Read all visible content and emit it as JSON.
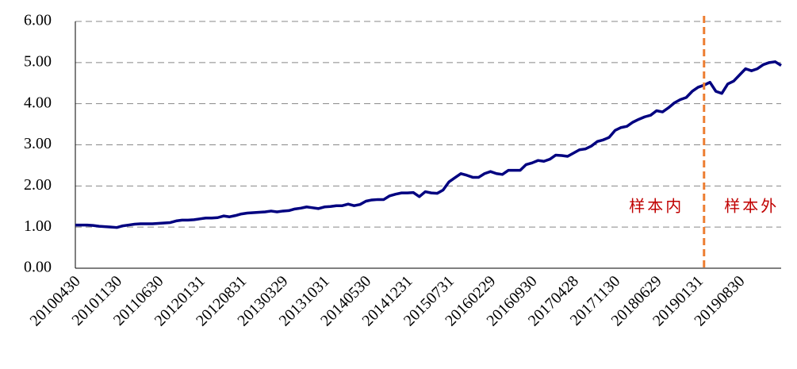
{
  "chart_data": {
    "type": "line",
    "categories": [
      "20100430",
      null,
      null,
      null,
      null,
      null,
      null,
      "20101130",
      null,
      null,
      null,
      null,
      null,
      null,
      "20110630",
      null,
      null,
      null,
      null,
      null,
      null,
      "20120131",
      null,
      null,
      null,
      null,
      null,
      null,
      "20120831",
      null,
      null,
      null,
      null,
      null,
      null,
      "20130329",
      null,
      null,
      null,
      null,
      null,
      null,
      "20131031",
      null,
      null,
      null,
      null,
      null,
      null,
      "20140530",
      null,
      null,
      null,
      null,
      null,
      null,
      "20141231",
      null,
      null,
      null,
      null,
      null,
      null,
      "20150731",
      null,
      null,
      null,
      null,
      null,
      null,
      "20160229",
      null,
      null,
      null,
      null,
      null,
      null,
      "20160930",
      null,
      null,
      null,
      null,
      null,
      null,
      "20170428",
      null,
      null,
      null,
      null,
      null,
      null,
      "20171130",
      null,
      null,
      null,
      null,
      null,
      null,
      "20180629",
      null,
      null,
      null,
      null,
      null,
      null,
      "20190131",
      null,
      null,
      null,
      null,
      null,
      null,
      "20190830",
      null,
      null,
      null,
      null,
      null,
      null,
      null
    ],
    "series": [
      {
        "color": "#000080",
        "values": [
          1.05,
          1.05,
          1.05,
          1.04,
          1.02,
          1.01,
          1.0,
          0.99,
          1.03,
          1.05,
          1.07,
          1.08,
          1.08,
          1.08,
          1.09,
          1.1,
          1.11,
          1.15,
          1.17,
          1.17,
          1.18,
          1.2,
          1.22,
          1.22,
          1.23,
          1.27,
          1.25,
          1.28,
          1.32,
          1.34,
          1.35,
          1.36,
          1.37,
          1.39,
          1.37,
          1.39,
          1.4,
          1.44,
          1.46,
          1.49,
          1.47,
          1.45,
          1.49,
          1.5,
          1.52,
          1.52,
          1.56,
          1.52,
          1.55,
          1.63,
          1.66,
          1.67,
          1.67,
          1.76,
          1.8,
          1.83,
          1.83,
          1.84,
          1.74,
          1.86,
          1.83,
          1.82,
          1.9,
          2.1,
          2.2,
          2.3,
          2.26,
          2.21,
          2.21,
          2.3,
          2.35,
          2.3,
          2.28,
          2.38,
          2.38,
          2.38,
          2.52,
          2.56,
          2.62,
          2.6,
          2.65,
          2.75,
          2.74,
          2.72,
          2.8,
          2.88,
          2.9,
          2.97,
          3.08,
          3.12,
          3.18,
          3.35,
          3.42,
          3.45,
          3.55,
          3.62,
          3.68,
          3.72,
          3.83,
          3.8,
          3.9,
          4.02,
          4.1,
          4.15,
          4.3,
          4.4,
          4.45,
          4.52,
          4.3,
          4.25,
          4.48,
          4.55,
          4.7,
          4.85,
          4.8,
          4.85,
          4.95,
          5.0,
          5.02,
          4.93
        ]
      }
    ],
    "ylim": [
      0,
      6
    ],
    "yticks": [
      {
        "value": 0,
        "label": "0.00"
      },
      {
        "value": 1,
        "label": "1.00"
      },
      {
        "value": 2,
        "label": "2.00"
      },
      {
        "value": 3,
        "label": "3.00"
      },
      {
        "value": 4,
        "label": "4.00"
      },
      {
        "value": 5,
        "label": "5.00"
      },
      {
        "value": 6,
        "label": "6.00"
      }
    ],
    "grid": true,
    "divider": {
      "x": "20190131",
      "color": "#ed7d31"
    },
    "annotations": [
      {
        "text": "样本内",
        "color": "#c00000"
      },
      {
        "text": "样本外",
        "color": "#c00000"
      }
    ]
  }
}
